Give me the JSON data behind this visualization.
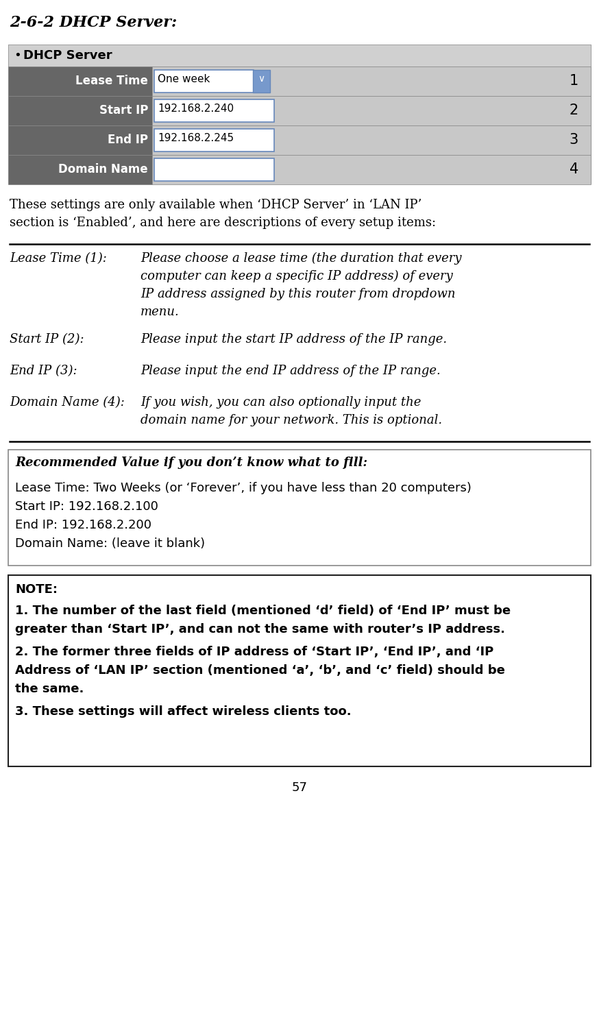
{
  "title": "2-6-2 DHCP Server:",
  "bg_color": "#ffffff",
  "page_number": "57",
  "section_intro_line1": "These settings are only available when ‘DHCP Server’ in ‘LAN IP’",
  "section_intro_line2": "section is ‘Enabled’, and here are descriptions of every setup items:",
  "table_header_bg": "#666666",
  "table_header_fg": "#ffffff",
  "table_row_bg": "#cccccc",
  "table_rows": [
    {
      "label": "Lease Time",
      "value": "One week",
      "number": "1",
      "has_dropdown": true
    },
    {
      "label": "Start IP",
      "value": "192.168.2.240",
      "number": "2",
      "has_dropdown": false
    },
    {
      "label": "End IP",
      "value": "192.168.2.245",
      "number": "3",
      "has_dropdown": false
    },
    {
      "label": "Domain Name",
      "value": "",
      "number": "4",
      "has_dropdown": false
    }
  ],
  "dhcp_server_label": "DHCP Server",
  "descriptions": [
    {
      "term": "Lease Time (1):",
      "desc": "Please choose a lease time (the duration that every\ncomputer can keep a specific IP address) of every\nIP address assigned by this router from dropdown\nmenu."
    },
    {
      "term": "Start IP (2):",
      "desc": "Please input the start IP address of the IP range."
    },
    {
      "term": "End IP (3):",
      "desc": "Please input the end IP address of the IP range."
    },
    {
      "term": "Domain Name (4):",
      "desc": "If you wish, you can also optionally input the\ndomain name for your network. This is optional."
    }
  ],
  "recommended_title": "Recommended Value if you don’t know what to fill:",
  "recommended_lines": [
    "Lease Time: Two Weeks (or ‘Forever’, if you have less than 20 computers)",
    "Start IP: 192.168.2.100",
    "End IP: 192.168.2.200",
    "Domain Name: (leave it blank)"
  ],
  "note_title": "NOTE:",
  "note_lines": [
    "1. The number of the last field (mentioned ‘d’ field) of ‘End IP’ must be\ngreater than ‘Start IP’, and can not the same with router’s IP address.",
    "2. The former three fields of IP address of ‘Start IP’, ‘End IP’, and ‘IP\nAddress of ‘LAN IP’ section (mentioned ‘a’, ‘b’, and ‘c’ field) should be\nthe same.",
    "3. These settings will affect wireless clients too."
  ]
}
